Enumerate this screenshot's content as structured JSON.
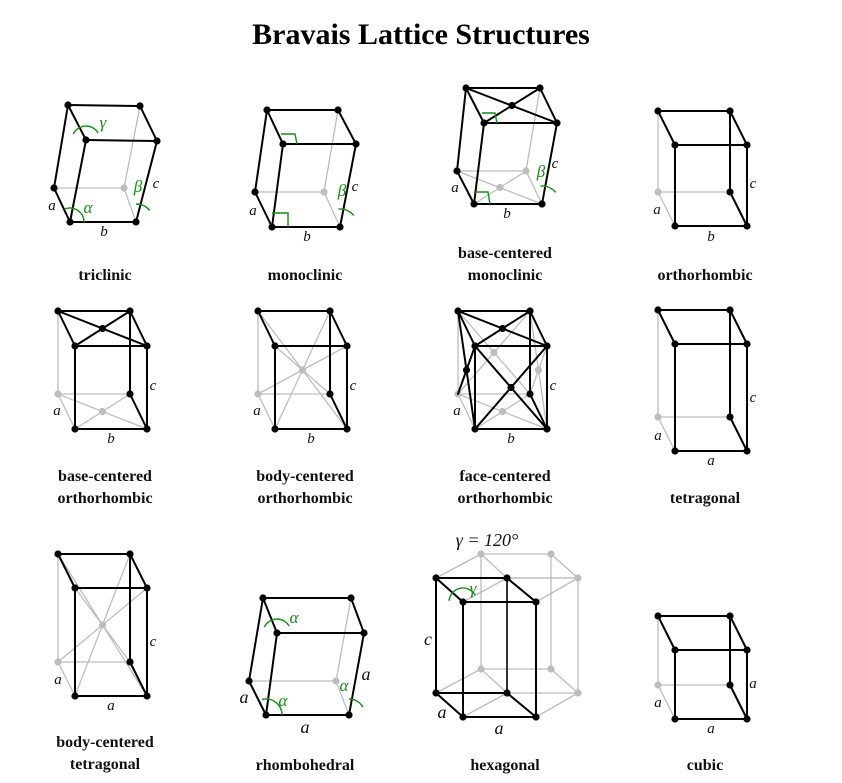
{
  "title": "Bravais Lattice Structures",
  "cells": [
    {
      "id": "triclinic",
      "caption": [
        "triclinic"
      ],
      "labels": {
        "a": "a",
        "b": "b",
        "c": "c",
        "alpha": "α",
        "beta": "β",
        "gamma": "γ"
      }
    },
    {
      "id": "monoclinic",
      "caption": [
        "monoclinic"
      ],
      "labels": {
        "a": "a",
        "b": "b",
        "c": "c",
        "beta": "β"
      }
    },
    {
      "id": "base-centered-monoclinic",
      "caption": [
        "base-centered",
        "monoclinic"
      ],
      "labels": {
        "a": "a",
        "b": "b",
        "c": "c",
        "beta": "β"
      }
    },
    {
      "id": "orthorhombic",
      "caption": [
        "orthorhombic"
      ],
      "labels": {
        "a": "a",
        "b": "b",
        "c": "c"
      }
    },
    {
      "id": "base-centered-orthorhombic",
      "caption": [
        "base-centered",
        "orthorhombic"
      ],
      "labels": {
        "a": "a",
        "b": "b",
        "c": "c"
      }
    },
    {
      "id": "body-centered-orthorhombic",
      "caption": [
        "body-centered",
        "orthorhombic"
      ],
      "labels": {
        "a": "a",
        "b": "b",
        "c": "c"
      }
    },
    {
      "id": "face-centered-orthorhombic",
      "caption": [
        "face-centered",
        "orthorhombic"
      ],
      "labels": {
        "a": "a",
        "b": "b",
        "c": "c"
      }
    },
    {
      "id": "tetragonal",
      "caption": [
        "tetragonal"
      ],
      "labels": {
        "a1": "a",
        "a2": "a",
        "c": "c"
      }
    },
    {
      "id": "body-centered-tetragonal",
      "caption": [
        "body-centered",
        "tetragonal"
      ],
      "labels": {
        "a1": "a",
        "a2": "a",
        "c": "c"
      }
    },
    {
      "id": "rhombohedral",
      "caption": [
        "rhombohedral"
      ],
      "labels": {
        "a1": "a",
        "a2": "a",
        "a3": "a",
        "alpha": "α"
      }
    },
    {
      "id": "hexagonal",
      "caption": [
        "hexagonal"
      ],
      "labels": {
        "a1": "a",
        "a2": "a",
        "c": "c",
        "gamma": "γ",
        "gamma_eq": "γ = 120°"
      }
    },
    {
      "id": "cubic",
      "caption": [
        "cubic"
      ],
      "labels": {
        "a1": "a",
        "a2": "a",
        "a3": "a"
      }
    }
  ],
  "colors": {
    "edge": "#000000",
    "hidden": "#bdbdbd",
    "angle": "#1a8a1a"
  }
}
